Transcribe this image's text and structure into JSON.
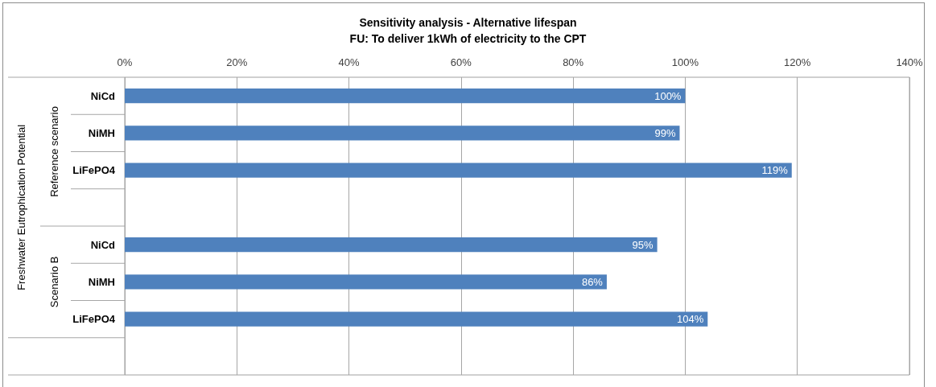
{
  "chart_data": {
    "type": "bar",
    "orientation": "horizontal",
    "title": "Sensitivity analysis - Alternative lifespan",
    "subtitle": "FU: To deliver 1kWh of electricity to the CPT",
    "ylabel": "Freshwater Eutrophication Potential",
    "annotations": [
      "Reference scenario",
      "Scenario B"
    ],
    "categories": [
      "NiCd",
      "NiMH",
      "LiFePO4",
      null,
      "NiCd",
      "NiMH",
      "LiFePO4",
      null
    ],
    "values": [
      100,
      99,
      119,
      null,
      95,
      86,
      104,
      null
    ],
    "value_labels": [
      "100%",
      "99%",
      "119%",
      null,
      "95%",
      "86%",
      "104%",
      null
    ],
    "color": "#4f81bd",
    "xlim": [
      0,
      140
    ],
    "xticks": [
      {
        "value": 0,
        "label": "0%"
      },
      {
        "value": 20,
        "label": "20%"
      },
      {
        "value": 40,
        "label": "40%"
      },
      {
        "value": 60,
        "label": "60%"
      },
      {
        "value": 80,
        "label": "80%"
      },
      {
        "value": 100,
        "label": "100%"
      },
      {
        "value": 120,
        "label": "120%"
      },
      {
        "value": 140,
        "label": "140%"
      }
    ],
    "grid": "x"
  }
}
